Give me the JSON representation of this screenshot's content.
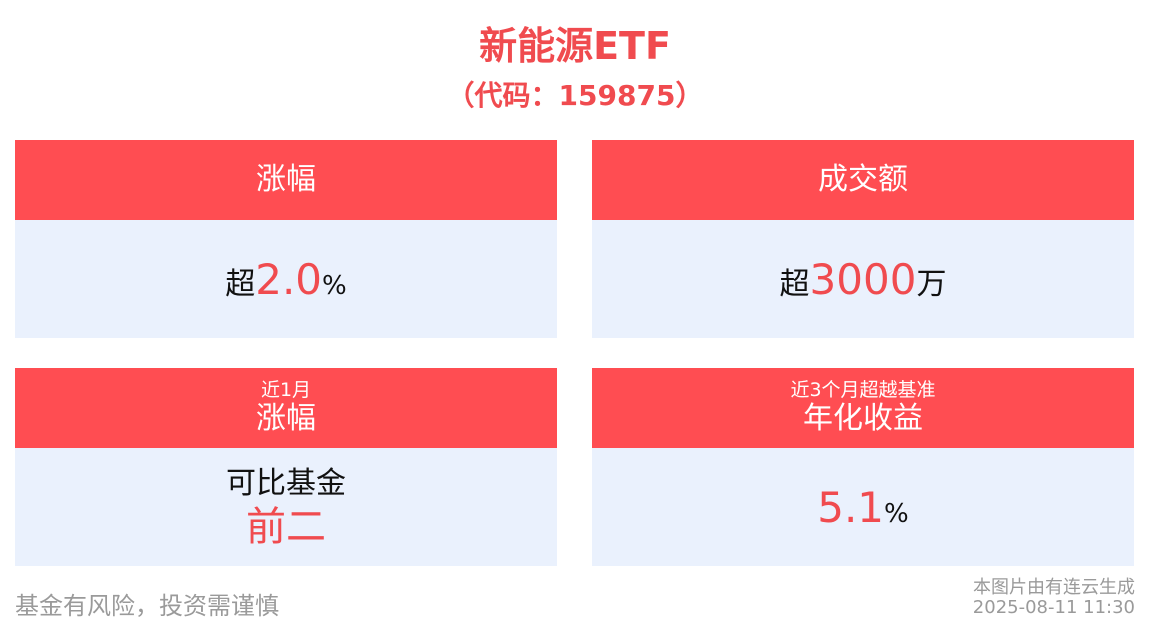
{
  "title": "新能源ETF",
  "subtitle": "（代码：159875）",
  "cards": [
    {
      "head": "涨幅",
      "prefix": "超",
      "value": "2.0",
      "unit": "%"
    },
    {
      "head": "成交额",
      "prefix": "超",
      "value": "3000",
      "unit": "万"
    },
    {
      "head_sub": "近1月",
      "head": "涨幅",
      "line1": "可比基金",
      "line2": "前二"
    },
    {
      "head_sub": "近3个月超越基准",
      "head": "年化收益",
      "value": "5.1",
      "unit": "%"
    }
  ],
  "footer": {
    "disclaimer": "基金有风险，投资需谨慎",
    "generated": "本图片由有连云生成",
    "datetime": "2025-08-11 11:30"
  },
  "colors": {
    "accent": "#ff4d52",
    "card_bg": "#eaf1fd",
    "text_red": "#f04b4f"
  }
}
